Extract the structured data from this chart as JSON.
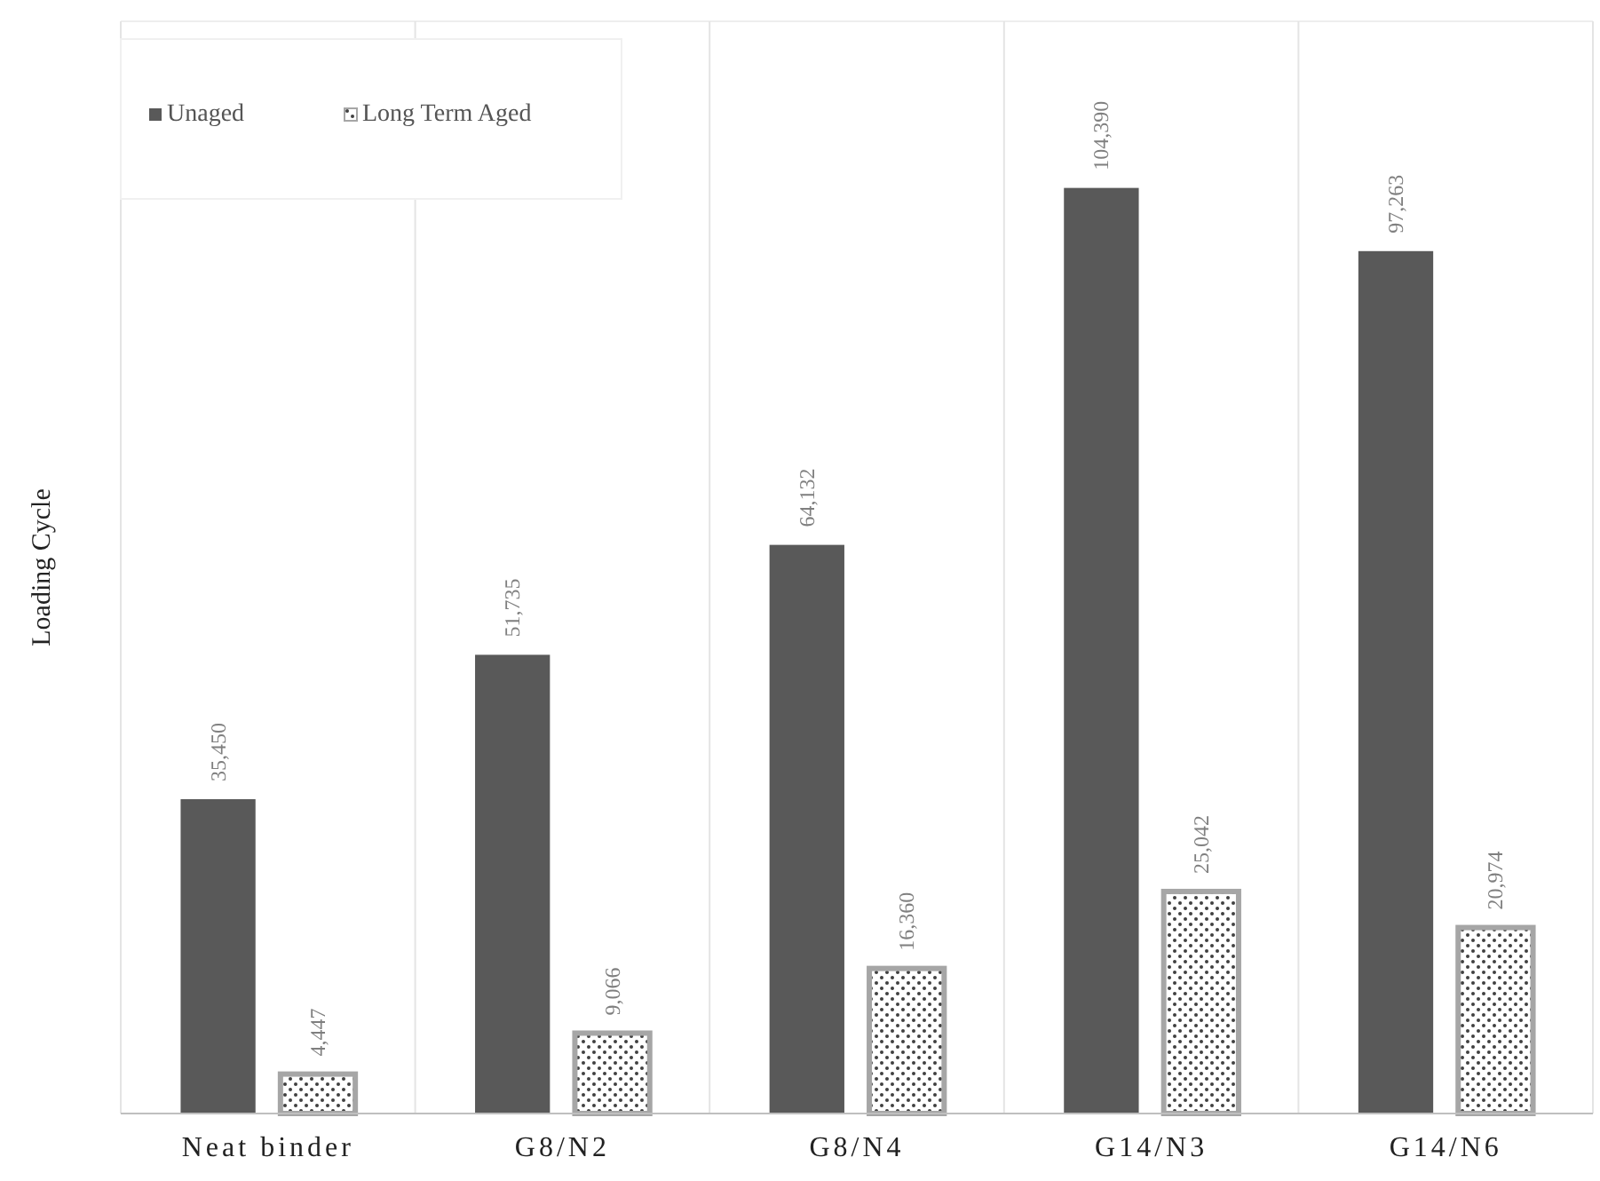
{
  "chart_data": {
    "type": "bar",
    "ylabel": "Loading Cycle",
    "categories": [
      "Neat binder",
      "G8/N2",
      "G8/N4",
      "G14/N3",
      "G14/N6"
    ],
    "series": [
      {
        "name": "Unaged",
        "color": "#595959",
        "values": [
          35450,
          51735,
          64132,
          104390,
          97263
        ],
        "value_labels": [
          "35,450",
          "51,735",
          "64,132",
          "104,390",
          "97,263"
        ]
      },
      {
        "name": "Long Term Aged",
        "color": "#a6a6a6",
        "values": [
          4447,
          9066,
          16360,
          25042,
          20974
        ],
        "value_labels": [
          "4,447",
          "9,066",
          "16,360",
          "25,042",
          "20,974"
        ]
      }
    ],
    "grid": "x",
    "legend": "top left"
  }
}
